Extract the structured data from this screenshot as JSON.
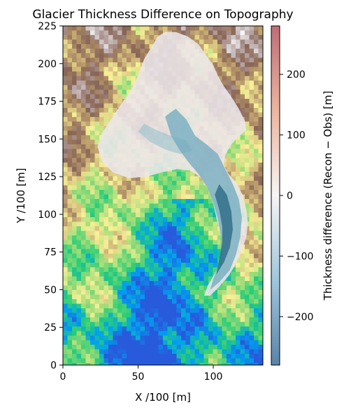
{
  "chart_data": {
    "type": "heatmap",
    "title": "Glacier Thickness Difference on Topography",
    "xlabel": "X /100 [m]",
    "ylabel": "Y /100 [m]",
    "xlim": [
      0,
      133
    ],
    "ylim": [
      0,
      225
    ],
    "x_ticks": [
      0,
      50,
      100
    ],
    "y_ticks": [
      0,
      25,
      50,
      75,
      100,
      125,
      150,
      175,
      200,
      225
    ],
    "x_tick_labels": [
      "0",
      "50",
      "100"
    ],
    "y_tick_labels": [
      "0",
      "25",
      "50",
      "75",
      "100",
      "125",
      "150",
      "175",
      "200",
      "225"
    ],
    "grid": false,
    "background": "terrain-colored elevation map",
    "background_colormap": "terrain",
    "overlay_colormap": "RdBu_r (semi-transparent)",
    "colorbar": {
      "label": "Thickness difference (Recon − Obs) [m]",
      "range": [
        -280,
        280
      ],
      "ticks": [
        200,
        100,
        0,
        -100,
        -200
      ],
      "tick_labels": [
        "200",
        "100",
        "0",
        "−100",
        "−200"
      ],
      "colors": [
        "#3b6e98",
        "#8fbcd6",
        "#f5f2f1",
        "#e8a88e",
        "#b3545e"
      ]
    },
    "glacier_outline": [
      [
        23,
        145
      ],
      [
        26,
        154
      ],
      [
        32,
        163
      ],
      [
        38,
        172
      ],
      [
        45,
        182
      ],
      [
        50,
        192
      ],
      [
        54,
        203
      ],
      [
        59,
        211
      ],
      [
        63,
        218
      ],
      [
        68,
        221
      ],
      [
        75,
        221
      ],
      [
        83,
        218
      ],
      [
        90,
        213
      ],
      [
        95,
        206
      ],
      [
        100,
        199
      ],
      [
        103,
        192
      ],
      [
        107,
        185
      ],
      [
        112,
        178
      ],
      [
        117,
        170
      ],
      [
        121,
        162
      ],
      [
        122,
        156
      ],
      [
        116,
        151
      ],
      [
        111,
        145
      ],
      [
        108,
        139
      ],
      [
        107,
        133
      ],
      [
        110,
        127
      ],
      [
        116,
        120
      ],
      [
        120,
        112
      ],
      [
        122,
        103
      ],
      [
        123,
        94
      ],
      [
        122,
        85
      ],
      [
        119,
        76
      ],
      [
        115,
        67
      ],
      [
        110,
        59
      ],
      [
        104,
        52
      ],
      [
        98,
        46
      ],
      [
        94,
        46
      ],
      [
        96,
        52
      ],
      [
        100,
        59
      ],
      [
        104,
        66
      ],
      [
        106,
        74
      ],
      [
        106,
        82
      ],
      [
        104,
        90
      ],
      [
        102,
        98
      ],
      [
        100,
        107
      ],
      [
        97,
        116
      ],
      [
        92,
        124
      ],
      [
        85,
        129
      ],
      [
        76,
        130
      ],
      [
        66,
        128
      ],
      [
        56,
        125
      ],
      [
        44,
        124
      ],
      [
        33,
        128
      ],
      [
        26,
        135
      ]
    ],
    "thinning_tongue": [
      [
        68,
        165
      ],
      [
        75,
        170
      ],
      [
        82,
        163
      ],
      [
        88,
        152
      ],
      [
        96,
        146
      ],
      [
        103,
        140
      ],
      [
        108,
        130
      ],
      [
        113,
        120
      ],
      [
        117,
        110
      ],
      [
        119,
        98
      ],
      [
        118,
        85
      ],
      [
        115,
        73
      ],
      [
        111,
        63
      ],
      [
        104,
        55
      ],
      [
        98,
        50
      ],
      [
        100,
        57
      ],
      [
        103,
        65
      ],
      [
        105,
        75
      ],
      [
        105,
        86
      ],
      [
        103,
        97
      ],
      [
        100,
        108
      ],
      [
        96,
        118
      ],
      [
        90,
        127
      ],
      [
        84,
        134
      ],
      [
        78,
        142
      ],
      [
        72,
        152
      ]
    ],
    "thinning_core": [
      [
        104,
        120
      ],
      [
        109,
        113
      ],
      [
        112,
        102
      ],
      [
        113,
        90
      ],
      [
        111,
        78
      ],
      [
        107,
        68
      ],
      [
        102,
        60
      ],
      [
        104,
        70
      ],
      [
        106,
        81
      ],
      [
        106,
        92
      ],
      [
        104,
        103
      ],
      [
        101,
        113
      ]
    ],
    "thinning_branch": [
      [
        50,
        155
      ],
      [
        58,
        148
      ],
      [
        68,
        143
      ],
      [
        78,
        140
      ],
      [
        86,
        142
      ],
      [
        82,
        149
      ],
      [
        72,
        152
      ],
      [
        62,
        156
      ],
      [
        54,
        160
      ]
    ]
  }
}
